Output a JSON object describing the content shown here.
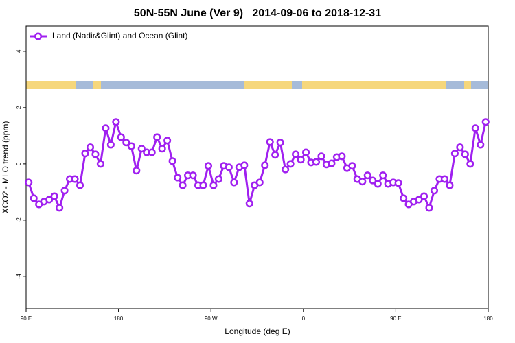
{
  "chart_data": {
    "type": "line",
    "title": "50N-55N June (Ver 9)   2014-09-06 to 2018-12-31",
    "xlabel": "Longitude (deg E)",
    "ylabel": "XCO2 - MLO trend (ppm)",
    "x": [
      92.5,
      97.5,
      102.5,
      107.5,
      112.5,
      117.5,
      122.5,
      127.5,
      132.5,
      137.5,
      142.5,
      147.5,
      152.5,
      157.5,
      162.5,
      167.5,
      172.5,
      177.5,
      182.5,
      187.5,
      192.5,
      197.5,
      202.5,
      207.5,
      212.5,
      217.5,
      222.5,
      227.5,
      232.5,
      237.5,
      242.5,
      247.5,
      252.5,
      257.5,
      262.5,
      267.5,
      272.5,
      277.5,
      282.5,
      287.5,
      292.5,
      297.5,
      302.5,
      307.5,
      312.5,
      317.5,
      322.5,
      327.5,
      332.5,
      337.5,
      342.5,
      347.5,
      352.5,
      357.5,
      362.5,
      367.5,
      372.5,
      377.5,
      382.5,
      387.5,
      392.5,
      397.5,
      402.5,
      407.5,
      412.5,
      417.5,
      422.5,
      427.5,
      432.5,
      437.5,
      442.5,
      447.5,
      452.5,
      457.5,
      462.5,
      467.5,
      472.5,
      477.5,
      482.5,
      487.5,
      492.5,
      497.5,
      502.5,
      507.5,
      512.5,
      517.5,
      522.5,
      527.5,
      532.5,
      537.5
    ],
    "series": [
      {
        "name": "Land (Nadir&Glint) and Ocean (Glint)",
        "color": "#a020f0",
        "values": [
          -0.66,
          -1.22,
          -1.44,
          -1.34,
          -1.27,
          -1.15,
          -1.56,
          -0.95,
          -0.54,
          -0.54,
          -0.76,
          0.37,
          0.59,
          0.34,
          0,
          1.27,
          0.68,
          1.49,
          0.95,
          0.76,
          0.63,
          -0.24,
          0.54,
          0.41,
          0.41,
          0.95,
          0.54,
          0.83,
          0.1,
          -0.49,
          -0.76,
          -0.41,
          -0.41,
          -0.76,
          -0.76,
          -0.07,
          -0.76,
          -0.54,
          -0.07,
          -0.12,
          -0.66,
          -0.12,
          -0.05,
          -1.41,
          -0.76,
          -0.66,
          -0.05,
          0.78,
          0.32,
          0.76,
          -0.2,
          0,
          0.34,
          0.15,
          0.41,
          0.05,
          0.07,
          0.27,
          -0.02,
          0.02,
          0.24,
          0.27,
          -0.15,
          -0.07,
          -0.54,
          -0.63,
          -0.41,
          -0.59,
          -0.71,
          -0.41,
          -0.71,
          -0.66,
          -0.68,
          -1.22,
          -1.44,
          -1.34,
          -1.27,
          -1.15,
          -1.56,
          -0.95,
          -0.54,
          -0.54,
          -0.76,
          0.37,
          0.59,
          0.34,
          0,
          1.27,
          0.68,
          1.49
        ]
      }
    ],
    "xlim": [
      90,
      540
    ],
    "xticks": [
      {
        "value": 90,
        "label": "90 E"
      },
      180,
      {
        "value": 270,
        "label": "90 W"
      },
      {
        "value": 360,
        "label": "0"
      },
      {
        "value": 450,
        "label": "90 E"
      },
      {
        "value": 540,
        "label": "180"
      }
    ],
    "ylim": [
      -5.15,
      4.9
    ],
    "yticks": [
      -4,
      -2,
      0,
      2,
      4
    ],
    "legend": "top-left"
  }
}
